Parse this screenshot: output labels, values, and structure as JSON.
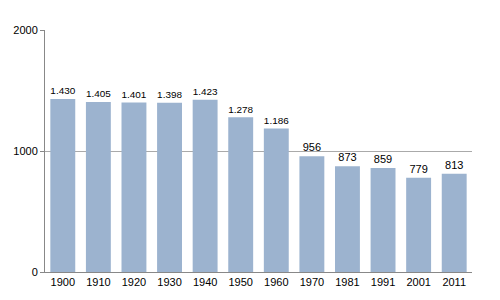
{
  "chart_data": {
    "type": "bar",
    "categories": [
      "1900",
      "1910",
      "1920",
      "1930",
      "1940",
      "1950",
      "1960",
      "1970",
      "1981",
      "1991",
      "2001",
      "2011"
    ],
    "values": [
      1430,
      1405,
      1401,
      1398,
      1423,
      1278,
      1186,
      956,
      873,
      859,
      779,
      813
    ],
    "value_labels": [
      "1.430",
      "1.405",
      "1.401",
      "1.398",
      "1.423",
      "1.278",
      "1.186",
      "956",
      "873",
      "859",
      "779",
      "813"
    ],
    "color": "#9cb3cf",
    "ylim": [
      0,
      2000
    ],
    "yticks": [
      0,
      1000,
      2000
    ],
    "grid": true,
    "data_labels": true
  }
}
